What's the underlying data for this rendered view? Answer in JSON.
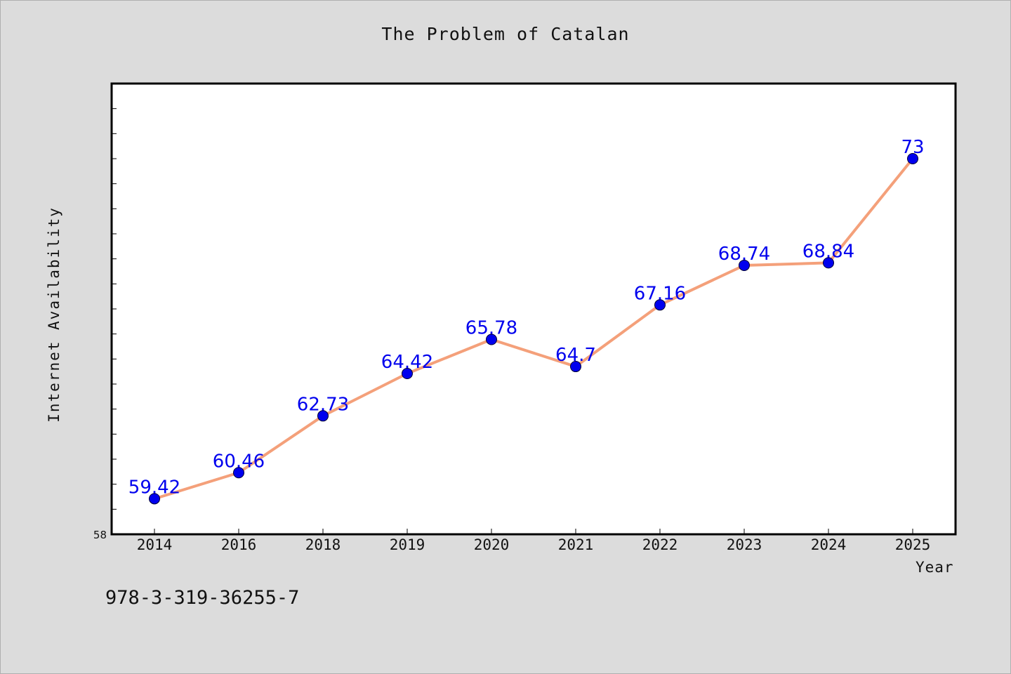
{
  "chart_data": {
    "type": "line",
    "title": "The Problem of Catalan",
    "xlabel": "Year",
    "ylabel": "Internet Availability",
    "categories": [
      "2014",
      "2016",
      "2018",
      "2019",
      "2020",
      "2021",
      "2022",
      "2023",
      "2024",
      "2025"
    ],
    "series": [
      {
        "values": [
          59.42,
          60.46,
          62.73,
          64.42,
          65.78,
          64.7,
          67.16,
          68.74,
          68.84,
          73
        ],
        "labels": [
          "59.42",
          "60.46",
          "62.73",
          "64.42",
          "65.78",
          "64.7",
          "67.16",
          "68.74",
          "68.84",
          "73"
        ]
      }
    ],
    "ylim": [
      58,
      76
    ],
    "y_tick_labels": [
      "58"
    ],
    "line_color": "#f4a07a",
    "marker_color": "#0000ee",
    "label_color": "#0000ee",
    "grid": false,
    "legend": "none"
  },
  "footer": {
    "isbn": "978-3-319-36255-7"
  }
}
